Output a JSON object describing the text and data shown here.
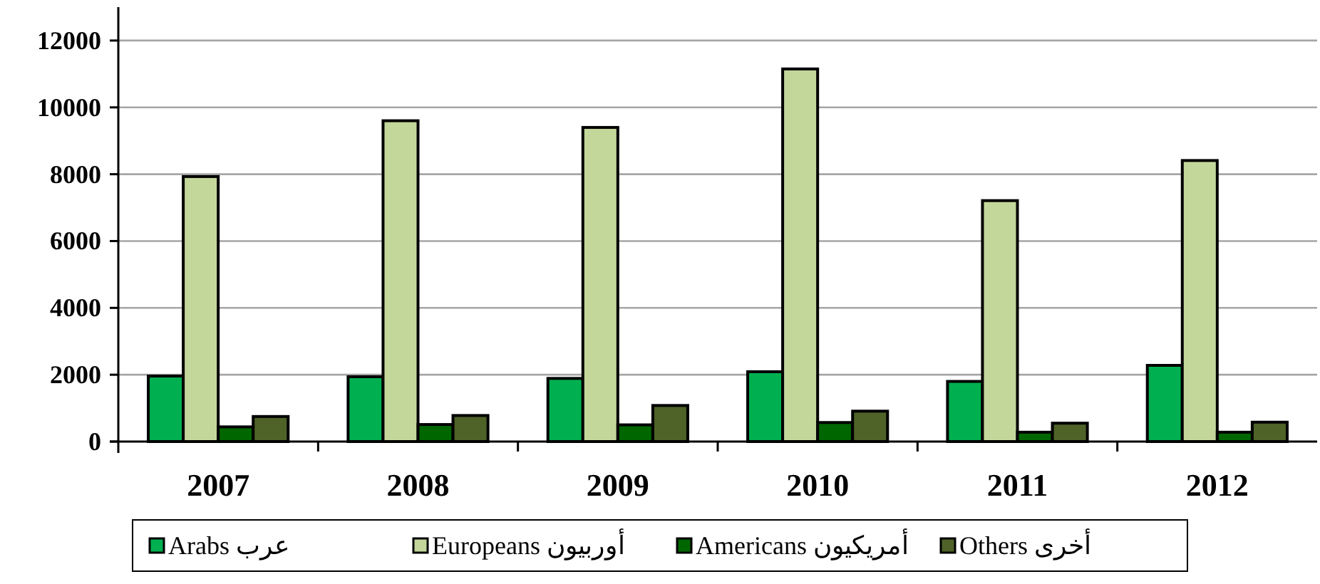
{
  "chart_data": {
    "type": "bar",
    "categories": [
      "2007",
      "2008",
      "2009",
      "2010",
      "2011",
      "2012"
    ],
    "series": [
      {
        "name": "Arabs عرب",
        "color": "#00b050",
        "values": [
          1960,
          1940,
          1890,
          2090,
          1800,
          2280
        ]
      },
      {
        "name": "Europeans أوربيون",
        "color": "#c4d79b",
        "values": [
          7930,
          9600,
          9400,
          11150,
          7210,
          8410
        ]
      },
      {
        "name": "Americans أمريكيون",
        "color": "#006600",
        "values": [
          440,
          510,
          500,
          570,
          280,
          280
        ]
      },
      {
        "name": "Others أخرى",
        "color": "#4f6228",
        "values": [
          750,
          780,
          1080,
          910,
          550,
          580
        ]
      }
    ],
    "ylim": [
      0,
      13000
    ],
    "yticks": [
      0,
      2000,
      4000,
      6000,
      8000,
      10000,
      12000
    ],
    "grid": "y",
    "legend": "bottom"
  }
}
